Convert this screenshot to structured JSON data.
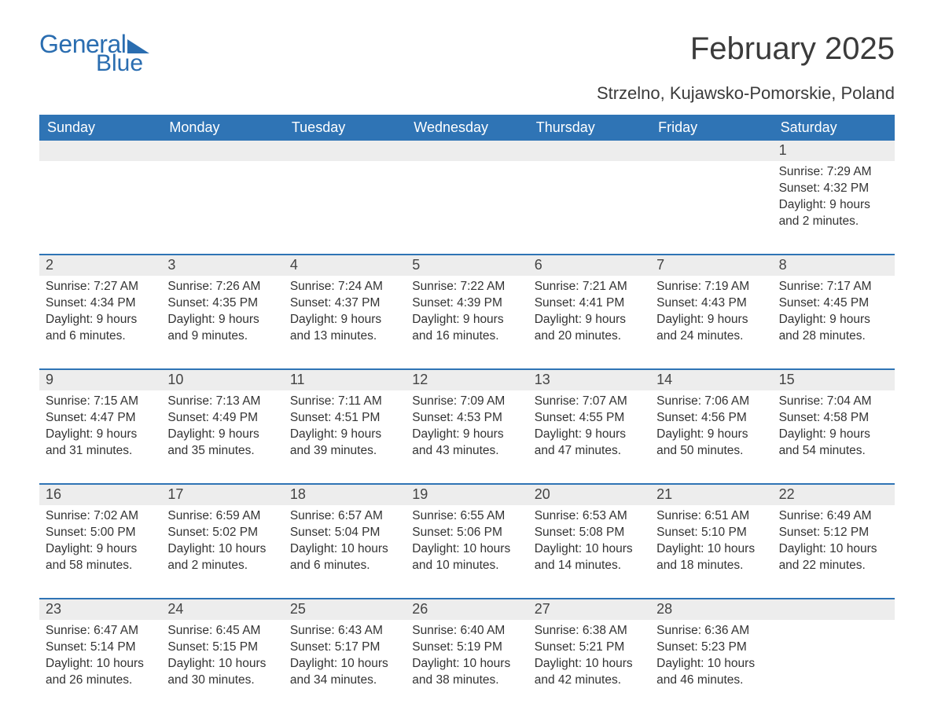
{
  "logo": {
    "text_general": "General",
    "text_blue": "Blue",
    "brand_color": "#2a6db0"
  },
  "header": {
    "month_title": "February 2025",
    "location": "Strzelno, Kujawsko-Pomorskie, Poland"
  },
  "colors": {
    "header_bg": "#2f74b5",
    "header_fg": "#ffffff",
    "daynum_bg": "#ededed",
    "text": "#333333",
    "separator": "#2f74b5",
    "page_bg": "#ffffff"
  },
  "typography": {
    "month_title_fontsize": 40,
    "location_fontsize": 22,
    "dow_fontsize": 18,
    "daynum_fontsize": 18,
    "daydata_fontsize": 15.5
  },
  "calendar": {
    "days_of_week": [
      "Sunday",
      "Monday",
      "Tuesday",
      "Wednesday",
      "Thursday",
      "Friday",
      "Saturday"
    ],
    "leading_blanks": 6,
    "days": [
      {
        "n": 1,
        "sunrise": "7:29 AM",
        "sunset": "4:32 PM",
        "daylight": "9 hours and 2 minutes."
      },
      {
        "n": 2,
        "sunrise": "7:27 AM",
        "sunset": "4:34 PM",
        "daylight": "9 hours and 6 minutes."
      },
      {
        "n": 3,
        "sunrise": "7:26 AM",
        "sunset": "4:35 PM",
        "daylight": "9 hours and 9 minutes."
      },
      {
        "n": 4,
        "sunrise": "7:24 AM",
        "sunset": "4:37 PM",
        "daylight": "9 hours and 13 minutes."
      },
      {
        "n": 5,
        "sunrise": "7:22 AM",
        "sunset": "4:39 PM",
        "daylight": "9 hours and 16 minutes."
      },
      {
        "n": 6,
        "sunrise": "7:21 AM",
        "sunset": "4:41 PM",
        "daylight": "9 hours and 20 minutes."
      },
      {
        "n": 7,
        "sunrise": "7:19 AM",
        "sunset": "4:43 PM",
        "daylight": "9 hours and 24 minutes."
      },
      {
        "n": 8,
        "sunrise": "7:17 AM",
        "sunset": "4:45 PM",
        "daylight": "9 hours and 28 minutes."
      },
      {
        "n": 9,
        "sunrise": "7:15 AM",
        "sunset": "4:47 PM",
        "daylight": "9 hours and 31 minutes."
      },
      {
        "n": 10,
        "sunrise": "7:13 AM",
        "sunset": "4:49 PM",
        "daylight": "9 hours and 35 minutes."
      },
      {
        "n": 11,
        "sunrise": "7:11 AM",
        "sunset": "4:51 PM",
        "daylight": "9 hours and 39 minutes."
      },
      {
        "n": 12,
        "sunrise": "7:09 AM",
        "sunset": "4:53 PM",
        "daylight": "9 hours and 43 minutes."
      },
      {
        "n": 13,
        "sunrise": "7:07 AM",
        "sunset": "4:55 PM",
        "daylight": "9 hours and 47 minutes."
      },
      {
        "n": 14,
        "sunrise": "7:06 AM",
        "sunset": "4:56 PM",
        "daylight": "9 hours and 50 minutes."
      },
      {
        "n": 15,
        "sunrise": "7:04 AM",
        "sunset": "4:58 PM",
        "daylight": "9 hours and 54 minutes."
      },
      {
        "n": 16,
        "sunrise": "7:02 AM",
        "sunset": "5:00 PM",
        "daylight": "9 hours and 58 minutes."
      },
      {
        "n": 17,
        "sunrise": "6:59 AM",
        "sunset": "5:02 PM",
        "daylight": "10 hours and 2 minutes."
      },
      {
        "n": 18,
        "sunrise": "6:57 AM",
        "sunset": "5:04 PM",
        "daylight": "10 hours and 6 minutes."
      },
      {
        "n": 19,
        "sunrise": "6:55 AM",
        "sunset": "5:06 PM",
        "daylight": "10 hours and 10 minutes."
      },
      {
        "n": 20,
        "sunrise": "6:53 AM",
        "sunset": "5:08 PM",
        "daylight": "10 hours and 14 minutes."
      },
      {
        "n": 21,
        "sunrise": "6:51 AM",
        "sunset": "5:10 PM",
        "daylight": "10 hours and 18 minutes."
      },
      {
        "n": 22,
        "sunrise": "6:49 AM",
        "sunset": "5:12 PM",
        "daylight": "10 hours and 22 minutes."
      },
      {
        "n": 23,
        "sunrise": "6:47 AM",
        "sunset": "5:14 PM",
        "daylight": "10 hours and 26 minutes."
      },
      {
        "n": 24,
        "sunrise": "6:45 AM",
        "sunset": "5:15 PM",
        "daylight": "10 hours and 30 minutes."
      },
      {
        "n": 25,
        "sunrise": "6:43 AM",
        "sunset": "5:17 PM",
        "daylight": "10 hours and 34 minutes."
      },
      {
        "n": 26,
        "sunrise": "6:40 AM",
        "sunset": "5:19 PM",
        "daylight": "10 hours and 38 minutes."
      },
      {
        "n": 27,
        "sunrise": "6:38 AM",
        "sunset": "5:21 PM",
        "daylight": "10 hours and 42 minutes."
      },
      {
        "n": 28,
        "sunrise": "6:36 AM",
        "sunset": "5:23 PM",
        "daylight": "10 hours and 46 minutes."
      }
    ],
    "labels": {
      "sunrise": "Sunrise: ",
      "sunset": "Sunset: ",
      "daylight": "Daylight: "
    }
  }
}
